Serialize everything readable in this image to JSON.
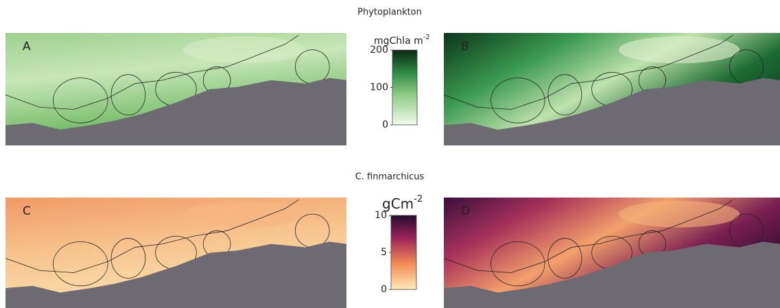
{
  "sections": [
    {
      "title": "Phytoplankton",
      "panels": [
        "A",
        "B"
      ],
      "colorbar": {
        "unit": "mgChla m",
        "unit_exp": "-2",
        "lim": [
          0,
          200
        ],
        "ticks": [
          0,
          100,
          200
        ]
      }
    },
    {
      "title": "C. finmarchicus",
      "panels": [
        "C",
        "D"
      ],
      "colorbar": {
        "unit": "gCm",
        "unit_exp": "-2",
        "lim": [
          0,
          10
        ],
        "ticks": [
          0,
          5,
          10
        ]
      }
    }
  ]
}
